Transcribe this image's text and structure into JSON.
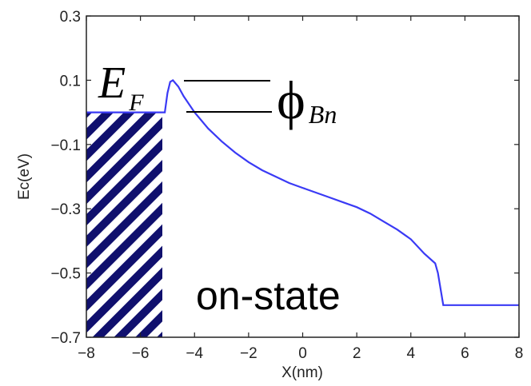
{
  "chart_data": {
    "type": "line",
    "xlabel": "X(nm)",
    "ylabel": "Ec(eV)",
    "xlim": [
      -8,
      8
    ],
    "ylim": [
      -0.7,
      0.3
    ],
    "xticks": [
      -8,
      -6,
      -4,
      -2,
      0,
      2,
      4,
      6,
      8
    ],
    "yticks": [
      0.3,
      0.1,
      -0.1,
      -0.3,
      -0.5,
      -0.7
    ],
    "xtick_labels": [
      "−8",
      "−6",
      "−4",
      "−2",
      "0",
      "2",
      "4",
      "6",
      "8"
    ],
    "ytick_labels": [
      "0.3",
      "0.1",
      "−0.1",
      "−0.3",
      "−0.5",
      "−0.7"
    ],
    "grid": false,
    "series": [
      {
        "color": "#3a3af5",
        "x": [
          -8,
          -5.1,
          -5.0,
          -4.9,
          -4.8,
          -4.6,
          -4.4,
          -4.0,
          -3.5,
          -3.0,
          -2.5,
          -2.0,
          -1.5,
          -1.0,
          -0.5,
          0.0,
          0.5,
          1.0,
          1.5,
          2.0,
          2.5,
          3.0,
          3.5,
          4.0,
          4.5,
          4.9,
          5.0,
          5.2,
          8.0
        ],
        "y": [
          0.0,
          0.0,
          0.06,
          0.095,
          0.1,
          0.08,
          0.05,
          0.0,
          -0.05,
          -0.09,
          -0.125,
          -0.155,
          -0.18,
          -0.2,
          -0.22,
          -0.235,
          -0.25,
          -0.265,
          -0.28,
          -0.295,
          -0.315,
          -0.34,
          -0.365,
          -0.395,
          -0.44,
          -0.47,
          -0.5,
          -0.6,
          -0.6
        ]
      }
    ],
    "annotations": {
      "ef_main": "E",
      "ef_sub": "F",
      "phi_main": "ϕ",
      "phi_sub": "Bn",
      "state": "on-state"
    },
    "metal_fill": {
      "x_range": [
        -8,
        -5
      ],
      "y_range": [
        -0.7,
        0.0
      ],
      "color": "#10106e",
      "pattern": "diagonal-stripes"
    }
  }
}
